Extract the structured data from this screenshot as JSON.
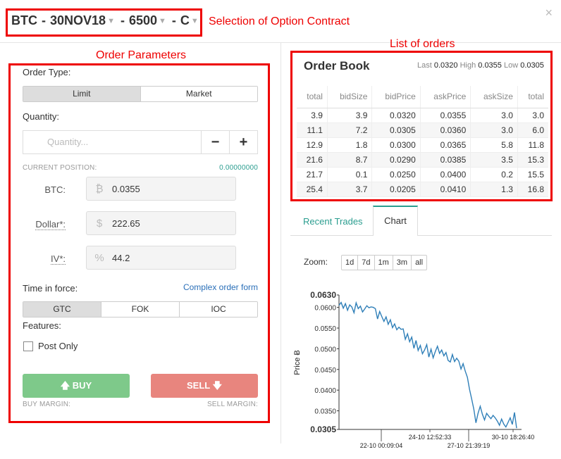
{
  "header": {
    "contract": {
      "underlying": "BTC",
      "sep1": "-",
      "expiry": "30NOV18",
      "sep2": "-",
      "strike": "6500",
      "sep3": "-",
      "type": "C"
    },
    "annotation": "Selection of Option Contract",
    "close_glyph": "×"
  },
  "annotations": {
    "order_parameters": "Order Parameters",
    "list_of_orders": "List of orders"
  },
  "order_form": {
    "order_type_label": "Order Type:",
    "order_types": [
      "Limit",
      "Market"
    ],
    "quantity_label": "Quantity:",
    "quantity_placeholder": "Quantity...",
    "minus": "−",
    "plus": "+",
    "current_position_label": "CURRENT POSITION:",
    "current_position_value": "0.00000000",
    "btc_label": "BTC:",
    "btc_value": "0.0355",
    "dollar_label": "Dollar*:",
    "dollar_value": "222.65",
    "iv_label": "IV*:",
    "iv_value": "44.2",
    "tif_label": "Time in force:",
    "complex_link": "Complex order form",
    "tif_options": [
      "GTC",
      "FOK",
      "IOC"
    ],
    "features_label": "Features:",
    "post_only_label": "Post Only",
    "buy_label": "BUY",
    "sell_label": "SELL",
    "buy_margin_label": "BUY MARGIN:",
    "sell_margin_label": "SELL MARGIN:"
  },
  "order_book": {
    "title": "Order Book",
    "last_label": "Last",
    "last_value": "0.0320",
    "high_label": "High",
    "high_value": "0.0355",
    "low_label": "Low",
    "low_value": "0.0305",
    "columns": [
      "total",
      "bidSize",
      "bidPrice",
      "askPrice",
      "askSize",
      "total"
    ],
    "rows": [
      [
        "3.9",
        "3.9",
        "0.0320",
        "0.0355",
        "3.0",
        "3.0"
      ],
      [
        "11.1",
        "7.2",
        "0.0305",
        "0.0360",
        "3.0",
        "6.0"
      ],
      [
        "12.9",
        "1.8",
        "0.0300",
        "0.0365",
        "5.8",
        "11.8"
      ],
      [
        "21.6",
        "8.7",
        "0.0290",
        "0.0385",
        "3.5",
        "15.3"
      ],
      [
        "21.7",
        "0.1",
        "0.0250",
        "0.0400",
        "0.2",
        "15.5"
      ],
      [
        "25.4",
        "3.7",
        "0.0205",
        "0.0410",
        "1.3",
        "16.8"
      ]
    ]
  },
  "tabs": [
    "Recent Trades",
    "Chart"
  ],
  "zoom": {
    "label": "Zoom:",
    "options": [
      "1d",
      "7d",
      "1m",
      "3m",
      "all"
    ]
  },
  "colors": {
    "annotation_red": "#e00000",
    "bid_green": "#2e9b3e",
    "ask_red": "#c9302c",
    "teal": "#2a9d8f",
    "buy_button": "#7ec98a",
    "sell_button": "#e8857e",
    "chart_line": "#2f7fb8"
  },
  "chart_data": {
    "type": "line",
    "ylabel": "Price Ƀ",
    "ylim": [
      0.0305,
      0.063
    ],
    "y_ticks": [
      "0.0630",
      "0.0600",
      "0.0550",
      "0.0500",
      "0.0450",
      "0.0400",
      "0.0350",
      "0.0305"
    ],
    "x_ticks_top": [
      "24-10 12:52:33",
      "30-10 18:26:40"
    ],
    "x_ticks_bottom": [
      "22-10 00:09:04",
      "27-10 21:39:19"
    ],
    "series": [
      {
        "values": [
          0.0605,
          0.0612,
          0.0598,
          0.0609,
          0.0593,
          0.0606,
          0.0601,
          0.0587,
          0.0611,
          0.0597,
          0.0603,
          0.0589,
          0.0596,
          0.0604,
          0.0599,
          0.0601,
          0.06,
          0.0597,
          0.0572,
          0.059,
          0.0578,
          0.0566,
          0.0577,
          0.0559,
          0.057,
          0.0551,
          0.056,
          0.0546,
          0.0552,
          0.0547,
          0.0548,
          0.0523,
          0.0536,
          0.0517,
          0.0528,
          0.0501,
          0.052,
          0.0496,
          0.0508,
          0.0488,
          0.0497,
          0.051,
          0.048,
          0.0499,
          0.0478,
          0.0493,
          0.0506,
          0.0489,
          0.0497,
          0.0483,
          0.0491,
          0.0472,
          0.0468,
          0.0486,
          0.0469,
          0.0477,
          0.047,
          0.0451,
          0.0464,
          0.0446,
          0.0431,
          0.0402,
          0.0379,
          0.0354,
          0.0321,
          0.0344,
          0.0361,
          0.0342,
          0.0328,
          0.0344,
          0.0337,
          0.0331,
          0.0339,
          0.0333,
          0.0325,
          0.0315,
          0.033,
          0.0318,
          0.0311,
          0.0322,
          0.0333,
          0.0317,
          0.0346,
          0.0308
        ]
      }
    ]
  }
}
